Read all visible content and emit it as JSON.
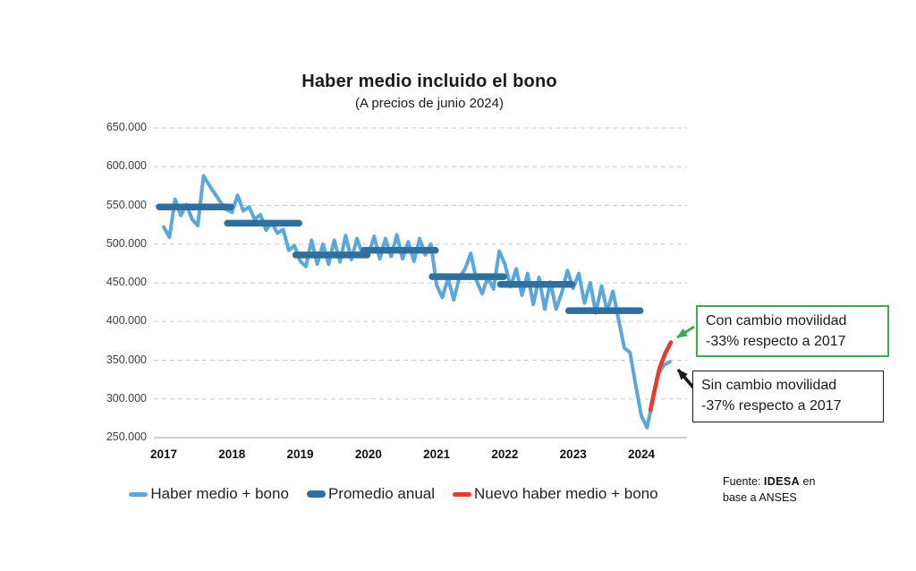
{
  "colors": {
    "haber_line": "#5BA7DC",
    "promedio_bar": "#2E6F9E",
    "nuevo_line": "#E8392B",
    "callout_green": "#3FA94F",
    "callout_black": "#1A1A1A",
    "grid": "#C8C8C8",
    "axis_line": "#BDBDBD",
    "text": "#1A1A1A"
  },
  "chart_data": {
    "type": "line",
    "title": "Haber medio incluido el bono",
    "subtitle": "(A precios de junio 2024)",
    "grid": "horizontal dashed",
    "legend_position": "bottom",
    "y_axis": {
      "min": 250000,
      "max": 650000,
      "tick_step": 50000,
      "tick_labels": [
        "250.000",
        "300.000",
        "350.000",
        "400.000",
        "450.000",
        "500.000",
        "550.000",
        "600.000",
        "650.000"
      ]
    },
    "x_axis": {
      "tick_labels": [
        "2017",
        "2018",
        "2019",
        "2020",
        "2021",
        "2022",
        "2023",
        "2024"
      ]
    },
    "series": [
      {
        "name": "Haber medio + bono",
        "type": "line",
        "color_key": "haber_line",
        "start": "2017-01",
        "frequency": "monthly",
        "values": [
          522000,
          509000,
          558000,
          537000,
          551000,
          532000,
          524000,
          588000,
          576000,
          565000,
          554000,
          545000,
          541000,
          563000,
          543000,
          548000,
          532000,
          538000,
          518000,
          528000,
          514000,
          519000,
          492000,
          498000,
          478000,
          471000,
          505000,
          474000,
          500000,
          474000,
          505000,
          477000,
          511000,
          480000,
          507000,
          486000,
          486000,
          510000,
          481000,
          507000,
          484000,
          512000,
          481000,
          503000,
          478000,
          507000,
          486000,
          500000,
          447000,
          431000,
          456000,
          428000,
          457000,
          468000,
          488000,
          453000,
          436000,
          457000,
          442000,
          491000,
          474000,
          445000,
          468000,
          434000,
          462000,
          422000,
          457000,
          416000,
          451000,
          416000,
          437000,
          466000,
          443000,
          462000,
          424000,
          450000,
          411000,
          446000,
          413000,
          439000,
          402000,
          366000,
          360000,
          318000,
          278000,
          263000,
          298000,
          333000,
          344000,
          348000
        ]
      },
      {
        "name": "Promedio anual",
        "type": "horizontal-segments",
        "color_key": "promedio_bar",
        "years": [
          "2017",
          "2018",
          "2019",
          "2020",
          "2021",
          "2022",
          "2023"
        ],
        "values": [
          548000,
          527000,
          486000,
          492000,
          458000,
          448000,
          414000
        ]
      },
      {
        "name": "Nuevo haber medio + bono",
        "type": "line",
        "color_key": "nuevo_line",
        "points": [
          [
            85.6,
            286000
          ],
          [
            86.4,
            314000
          ],
          [
            87.2,
            340000
          ],
          [
            88.2,
            359000
          ],
          [
            89.2,
            373000
          ]
        ]
      }
    ]
  },
  "legend": {
    "items": [
      {
        "label": "Haber medio + bono",
        "color_key": "haber_line"
      },
      {
        "label": "Promedio anual",
        "color_key": "promedio_bar"
      },
      {
        "label": "Nuevo haber medio + bono",
        "color_key": "nuevo_line"
      }
    ]
  },
  "callouts": [
    {
      "lines": [
        "Con cambio movilidad",
        "-33% respecto a 2017"
      ],
      "border_color_key": "callout_green"
    },
    {
      "lines": [
        "Sin cambio movilidad",
        "-37% respecto a 2017"
      ],
      "border_color_key": "callout_black"
    }
  ],
  "source": {
    "prefix": "Fuente: ",
    "brand": "IDESA",
    "suffix": " en",
    "line2": "base a ANSES"
  }
}
